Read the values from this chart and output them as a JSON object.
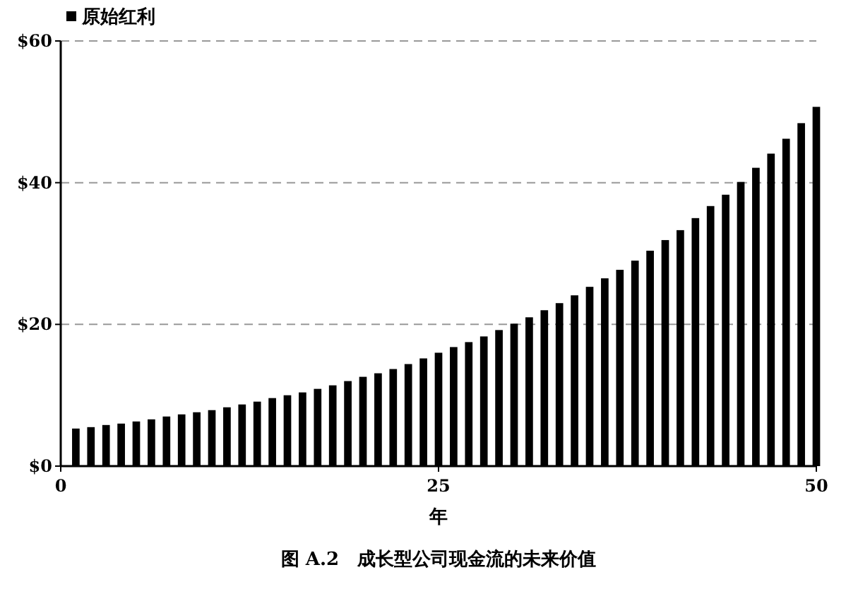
{
  "chart_data": {
    "type": "bar",
    "title": "图 A.2　成长型公司现金流的未来价值",
    "xlabel": "年",
    "x": [
      1,
      2,
      3,
      4,
      5,
      6,
      7,
      8,
      9,
      10,
      11,
      12,
      13,
      14,
      15,
      16,
      17,
      18,
      19,
      20,
      21,
      22,
      23,
      24,
      25,
      26,
      27,
      28,
      29,
      30,
      31,
      32,
      33,
      34,
      35,
      36,
      37,
      38,
      39,
      40,
      41,
      42,
      43,
      44,
      45,
      46,
      47,
      48,
      49,
      50
    ],
    "series": [
      {
        "name": "原始红利",
        "color": "#000000",
        "values": [
          5.3,
          5.5,
          5.8,
          6.0,
          6.3,
          6.6,
          7.0,
          7.3,
          7.6,
          7.9,
          8.3,
          8.7,
          9.1,
          9.6,
          10.0,
          10.4,
          10.9,
          11.4,
          12.0,
          12.6,
          13.1,
          13.7,
          14.4,
          15.2,
          16.0,
          16.8,
          17.5,
          18.3,
          19.2,
          20.1,
          21.0,
          22.0,
          23.0,
          24.1,
          25.3,
          26.5,
          27.7,
          29.0,
          30.4,
          31.9,
          33.3,
          35.0,
          36.7,
          38.3,
          40.1,
          42.1,
          44.1,
          46.2,
          48.4,
          50.7
        ]
      }
    ],
    "xlim": [
      0,
      50
    ],
    "xticks": [
      0,
      25,
      50
    ],
    "ylim": [
      0,
      60
    ],
    "yticks": [
      {
        "value": 0,
        "label": "$0"
      },
      {
        "value": 20,
        "label": "$20"
      },
      {
        "value": 40,
        "label": "$40"
      },
      {
        "value": 60,
        "label": "$60"
      }
    ],
    "grid": "y",
    "legend": "top left"
  }
}
